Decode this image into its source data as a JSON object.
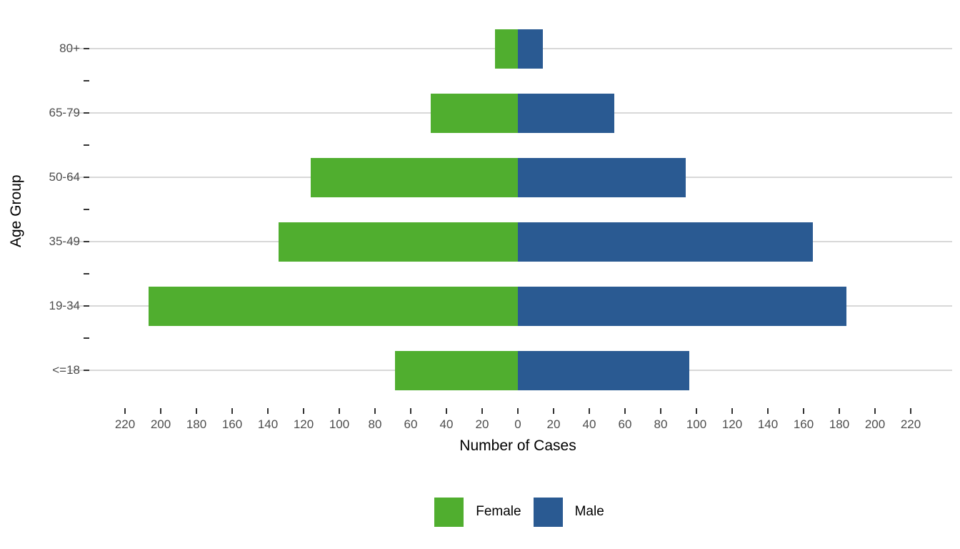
{
  "chart_data": {
    "type": "bar",
    "variant": "population-pyramid-diverging-horizontal",
    "title": "",
    "xlabel": "Number of Cases",
    "ylabel": "Age Group",
    "categories_top_to_bottom": [
      "80+",
      "65-79",
      "50-64",
      "35-49",
      "19-34",
      "<=18"
    ],
    "series": [
      {
        "name": "Female",
        "side": "left",
        "color": "#50AE2F",
        "values": [
          13,
          49,
          116,
          134,
          207,
          69
        ]
      },
      {
        "name": "Male",
        "side": "right",
        "color": "#2A5A92",
        "values": [
          14,
          54,
          94,
          165,
          184,
          96
        ]
      }
    ],
    "x_axis": {
      "tick_values": [
        -220,
        -200,
        -180,
        -160,
        -140,
        -120,
        -100,
        -80,
        -60,
        -40,
        -20,
        0,
        20,
        40,
        60,
        80,
        100,
        120,
        140,
        160,
        180,
        200,
        220
      ],
      "tick_labels": [
        "220",
        "200",
        "180",
        "160",
        "140",
        "120",
        "100",
        "80",
        "60",
        "40",
        "20",
        "0",
        "20",
        "40",
        "60",
        "80",
        "100",
        "120",
        "140",
        "160",
        "180",
        "200",
        "220"
      ],
      "tick_step": 20,
      "xlim": [
        -252,
        243
      ]
    },
    "grid": "horizontal-major-only",
    "legend_position": "bottom-center",
    "background": "#FFFFFF"
  }
}
